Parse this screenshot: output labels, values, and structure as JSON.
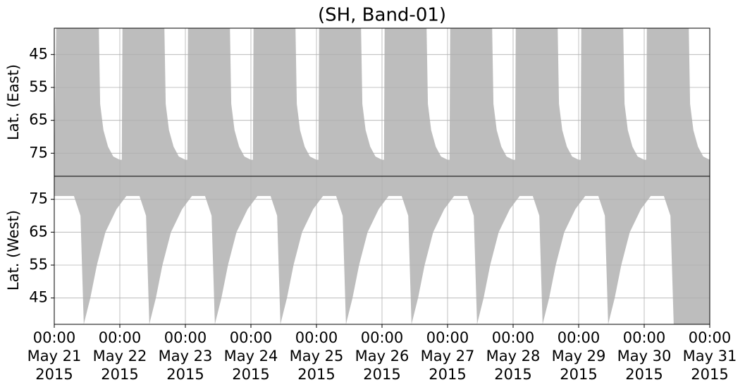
{
  "chart_data": [
    {
      "type": "area",
      "title": "(SH, Band-01)",
      "ylabel": "Lat. (East)",
      "color": "#bdbdbd",
      "x": [
        0,
        0.03,
        0.68,
        0.7,
        0.75,
        0.82,
        0.9,
        1,
        1.03,
        1.04,
        1.68,
        1.7,
        1.75,
        1.82,
        1.9,
        2,
        2.03,
        2.04,
        2.68,
        2.7,
        2.75,
        2.82,
        2.9,
        3,
        3.03,
        3.04,
        3.68,
        3.7,
        3.75,
        3.82,
        3.9,
        4,
        4.03,
        4.04,
        4.68,
        4.7,
        4.75,
        4.82,
        4.9,
        5,
        5.03,
        5.04,
        5.68,
        5.7,
        5.75,
        5.82,
        5.9,
        6,
        6.03,
        6.04,
        6.68,
        6.7,
        6.75,
        6.82,
        6.9,
        7,
        7.03,
        7.04,
        7.68,
        7.7,
        7.75,
        7.82,
        7.9,
        8,
        8.03,
        8.04,
        8.68,
        8.7,
        8.75,
        8.82,
        8.9,
        9,
        9.03,
        9.04,
        9.68,
        9.7,
        9.75,
        9.82,
        9.9,
        10
      ],
      "values": [
        77,
        37,
        37,
        60,
        68,
        73,
        76,
        77,
        77,
        37,
        37,
        60,
        68,
        73,
        76,
        77,
        77,
        37,
        37,
        60,
        68,
        73,
        76,
        77,
        77,
        37,
        37,
        60,
        68,
        73,
        76,
        77,
        77,
        37,
        37,
        60,
        68,
        73,
        76,
        77,
        77,
        37,
        37,
        60,
        68,
        73,
        76,
        77,
        77,
        37,
        37,
        60,
        68,
        73,
        76,
        77,
        77,
        37,
        37,
        60,
        68,
        73,
        76,
        77,
        77,
        37,
        37,
        60,
        68,
        73,
        76,
        77,
        77,
        37,
        37,
        60,
        68,
        73,
        76,
        77
      ],
      "xlim": [
        0,
        10
      ],
      "ylim": [
        37,
        82
      ],
      "y_inverted": true,
      "yticks": [
        45,
        55,
        65,
        75
      ],
      "grid": true
    },
    {
      "type": "area",
      "ylabel": "Lat. (West)",
      "color": "#bdbdbd",
      "x": [
        0,
        0.3,
        0.4,
        0.45,
        0.55,
        0.65,
        0.78,
        0.95,
        1.1,
        1.3,
        1.4,
        1.45,
        1.55,
        1.65,
        1.78,
        1.95,
        2.1,
        2.3,
        2.4,
        2.45,
        2.55,
        2.65,
        2.78,
        2.95,
        3.1,
        3.3,
        3.4,
        3.45,
        3.55,
        3.65,
        3.78,
        3.95,
        4.1,
        4.3,
        4.4,
        4.45,
        4.55,
        4.65,
        4.78,
        4.95,
        5.1,
        5.3,
        5.4,
        5.45,
        5.55,
        5.65,
        5.78,
        5.95,
        6.1,
        6.3,
        6.4,
        6.45,
        6.55,
        6.65,
        6.78,
        6.95,
        7.1,
        7.3,
        7.4,
        7.45,
        7.55,
        7.65,
        7.78,
        7.95,
        8.1,
        8.3,
        8.4,
        8.45,
        8.55,
        8.65,
        8.78,
        8.95,
        9.1,
        9.3,
        9.4,
        9.45,
        10
      ],
      "values": [
        76,
        76,
        70,
        37,
        45,
        55,
        65,
        72,
        76,
        76,
        70,
        37,
        45,
        55,
        65,
        72,
        76,
        76,
        70,
        37,
        45,
        55,
        65,
        72,
        76,
        76,
        70,
        37,
        45,
        55,
        65,
        72,
        76,
        76,
        70,
        37,
        45,
        55,
        65,
        72,
        76,
        76,
        70,
        37,
        45,
        55,
        65,
        72,
        76,
        76,
        70,
        37,
        45,
        55,
        65,
        72,
        76,
        76,
        70,
        37,
        45,
        55,
        65,
        72,
        76,
        76,
        70,
        37,
        45,
        55,
        65,
        72,
        76,
        76,
        70,
        37,
        37
      ],
      "xlim": [
        0,
        10
      ],
      "ylim": [
        37,
        82
      ],
      "y_inverted": false,
      "yticks": [
        45,
        55,
        65,
        75
      ],
      "grid": true,
      "xticks": [
        {
          "value": 0,
          "label": [
            "00:00",
            "May 21",
            "2015"
          ]
        },
        {
          "value": 1,
          "label": [
            "00:00",
            "May 22",
            "2015"
          ]
        },
        {
          "value": 2,
          "label": [
            "00:00",
            "May 23",
            "2015"
          ]
        },
        {
          "value": 3,
          "label": [
            "00:00",
            "May 24",
            "2015"
          ]
        },
        {
          "value": 4,
          "label": [
            "00:00",
            "May 25",
            "2015"
          ]
        },
        {
          "value": 5,
          "label": [
            "00:00",
            "May 26",
            "2015"
          ]
        },
        {
          "value": 6,
          "label": [
            "00:00",
            "May 27",
            "2015"
          ]
        },
        {
          "value": 7,
          "label": [
            "00:00",
            "May 28",
            "2015"
          ]
        },
        {
          "value": 8,
          "label": [
            "00:00",
            "May 29",
            "2015"
          ]
        },
        {
          "value": 9,
          "label": [
            "00:00",
            "May 30",
            "2015"
          ]
        },
        {
          "value": 10,
          "label": [
            "00:00",
            "May 31",
            "2015"
          ]
        }
      ]
    }
  ]
}
